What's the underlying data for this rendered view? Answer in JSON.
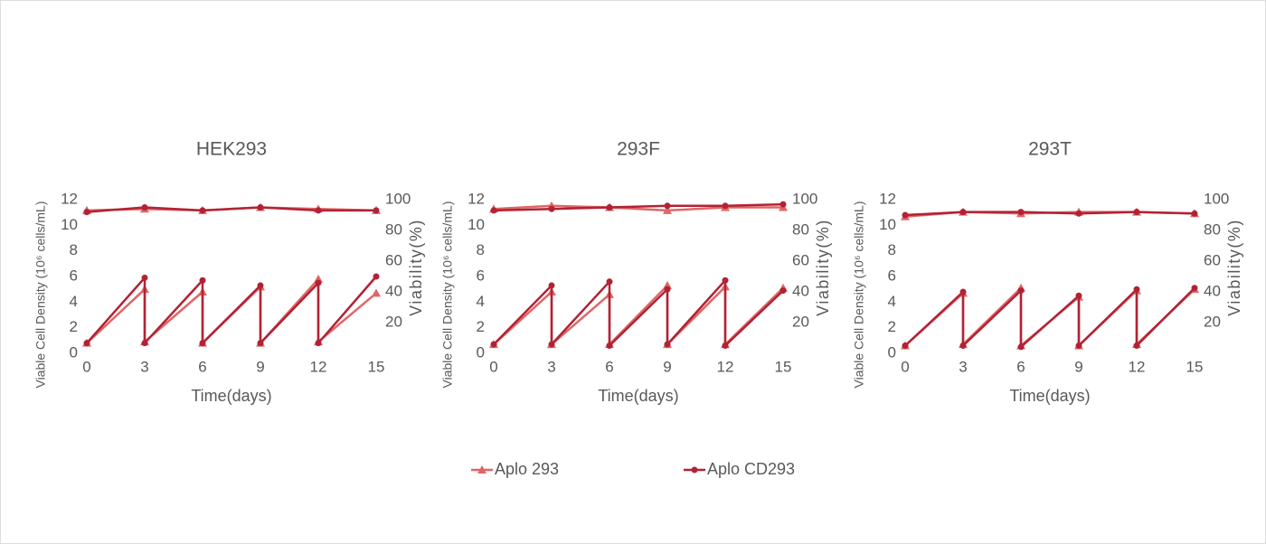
{
  "chart_data": [
    {
      "type": "line",
      "title": "HEK293",
      "x_label": "Time(days)",
      "y_label": "Viable Cell Density (10⁶ cells/mL)",
      "y2_label": "Viability(%)",
      "xlim": [
        0,
        15
      ],
      "xticks": [
        0,
        3,
        6,
        9,
        12,
        15
      ],
      "ylim": [
        0,
        12
      ],
      "yticks": [
        0,
        2,
        4,
        6,
        8,
        10,
        12
      ],
      "y2lim": [
        0,
        100
      ],
      "y2ticks": [
        20,
        40,
        60,
        80,
        100
      ],
      "series": [
        {
          "name": "Aplo 293",
          "color": "#e06666",
          "marker": "triangle",
          "x": [
            0,
            3,
            3,
            6,
            6,
            9,
            9,
            12,
            12,
            15
          ],
          "values": [
            0.8,
            5.0,
            0.9,
            4.8,
            0.8,
            5.2,
            0.8,
            5.8,
            0.9,
            4.7
          ]
        },
        {
          "name": "Aplo CD293",
          "color": "#b22234",
          "marker": "circle",
          "x": [
            0,
            3,
            3,
            6,
            6,
            9,
            9,
            12,
            12,
            15
          ],
          "values": [
            0.8,
            5.9,
            0.8,
            5.7,
            0.8,
            5.3,
            0.8,
            5.5,
            0.8,
            6.0
          ]
        },
        {
          "color": "#e06666",
          "marker": "triangle",
          "axis": "y2",
          "x": [
            0,
            3,
            6,
            9,
            12,
            15
          ],
          "values": [
            93,
            94,
            93,
            95,
            94,
            93
          ]
        },
        {
          "color": "#b22234",
          "marker": "circle",
          "axis": "y2",
          "x": [
            0,
            3,
            6,
            9,
            12,
            15
          ],
          "values": [
            92,
            95,
            93,
            95,
            93,
            93
          ]
        }
      ]
    },
    {
      "type": "line",
      "title": "293F",
      "x_label": "Time(days)",
      "y_label": "Viable Cell Density (10⁶ cells/mL)",
      "y2_label": "Viability(%)",
      "xlim": [
        0,
        15
      ],
      "xticks": [
        0,
        3,
        6,
        9,
        12,
        15
      ],
      "ylim": [
        0,
        12
      ],
      "yticks": [
        0,
        2,
        4,
        6,
        8,
        10,
        12
      ],
      "y2lim": [
        0,
        100
      ],
      "y2ticks": [
        20,
        40,
        60,
        80,
        100
      ],
      "series": [
        {
          "color": "#e06666",
          "marker": "triangle",
          "x": [
            0,
            3,
            3,
            6,
            6,
            9,
            9,
            12,
            12,
            15
          ],
          "values": [
            0.7,
            4.8,
            0.7,
            4.6,
            0.7,
            5.3,
            0.7,
            5.2,
            0.7,
            5.1
          ]
        },
        {
          "color": "#b22234",
          "marker": "circle",
          "x": [
            0,
            3,
            3,
            6,
            6,
            9,
            9,
            12,
            12,
            15
          ],
          "values": [
            0.7,
            5.3,
            0.7,
            5.6,
            0.6,
            5.0,
            0.7,
            5.7,
            0.6,
            4.9
          ]
        },
        {
          "color": "#e06666",
          "marker": "triangle",
          "axis": "y2",
          "x": [
            0,
            3,
            6,
            9,
            12,
            15
          ],
          "values": [
            94,
            96,
            95,
            93,
            95,
            95
          ]
        },
        {
          "color": "#b22234",
          "marker": "circle",
          "axis": "y2",
          "x": [
            0,
            3,
            6,
            9,
            12,
            15
          ],
          "values": [
            93,
            94,
            95,
            96,
            96,
            97
          ]
        }
      ]
    },
    {
      "type": "line",
      "title": "293T",
      "x_label": "Time(days)",
      "y_label": "Viable Cell Density (10⁶ cells/mL)",
      "y2_label": "Viability(%)",
      "xlim": [
        0,
        15
      ],
      "xticks": [
        0,
        3,
        6,
        9,
        12,
        15
      ],
      "ylim": [
        0,
        12
      ],
      "yticks": [
        0,
        2,
        4,
        6,
        8,
        10,
        12
      ],
      "y2lim": [
        0,
        100
      ],
      "y2ticks": [
        20,
        40,
        60,
        80,
        100
      ],
      "series": [
        {
          "color": "#e06666",
          "marker": "triangle",
          "x": [
            0,
            3,
            3,
            6,
            6,
            9,
            9,
            12,
            12,
            15
          ],
          "values": [
            0.6,
            4.7,
            0.7,
            5.1,
            0.6,
            4.4,
            0.6,
            4.9,
            0.7,
            5.0
          ]
        },
        {
          "color": "#b22234",
          "marker": "circle",
          "x": [
            0,
            3,
            3,
            6,
            6,
            9,
            9,
            12,
            12,
            15
          ],
          "values": [
            0.6,
            4.8,
            0.6,
            4.9,
            0.5,
            4.5,
            0.6,
            5.0,
            0.6,
            5.1
          ]
        },
        {
          "color": "#e06666",
          "marker": "triangle",
          "axis": "y2",
          "x": [
            0,
            3,
            6,
            9,
            12,
            15
          ],
          "values": [
            89,
            92,
            91,
            92,
            92,
            91
          ]
        },
        {
          "color": "#b22234",
          "marker": "circle",
          "axis": "y2",
          "x": [
            0,
            3,
            6,
            9,
            12,
            15
          ],
          "values": [
            90,
            92,
            92,
            91,
            92,
            91
          ]
        }
      ]
    }
  ]
}
